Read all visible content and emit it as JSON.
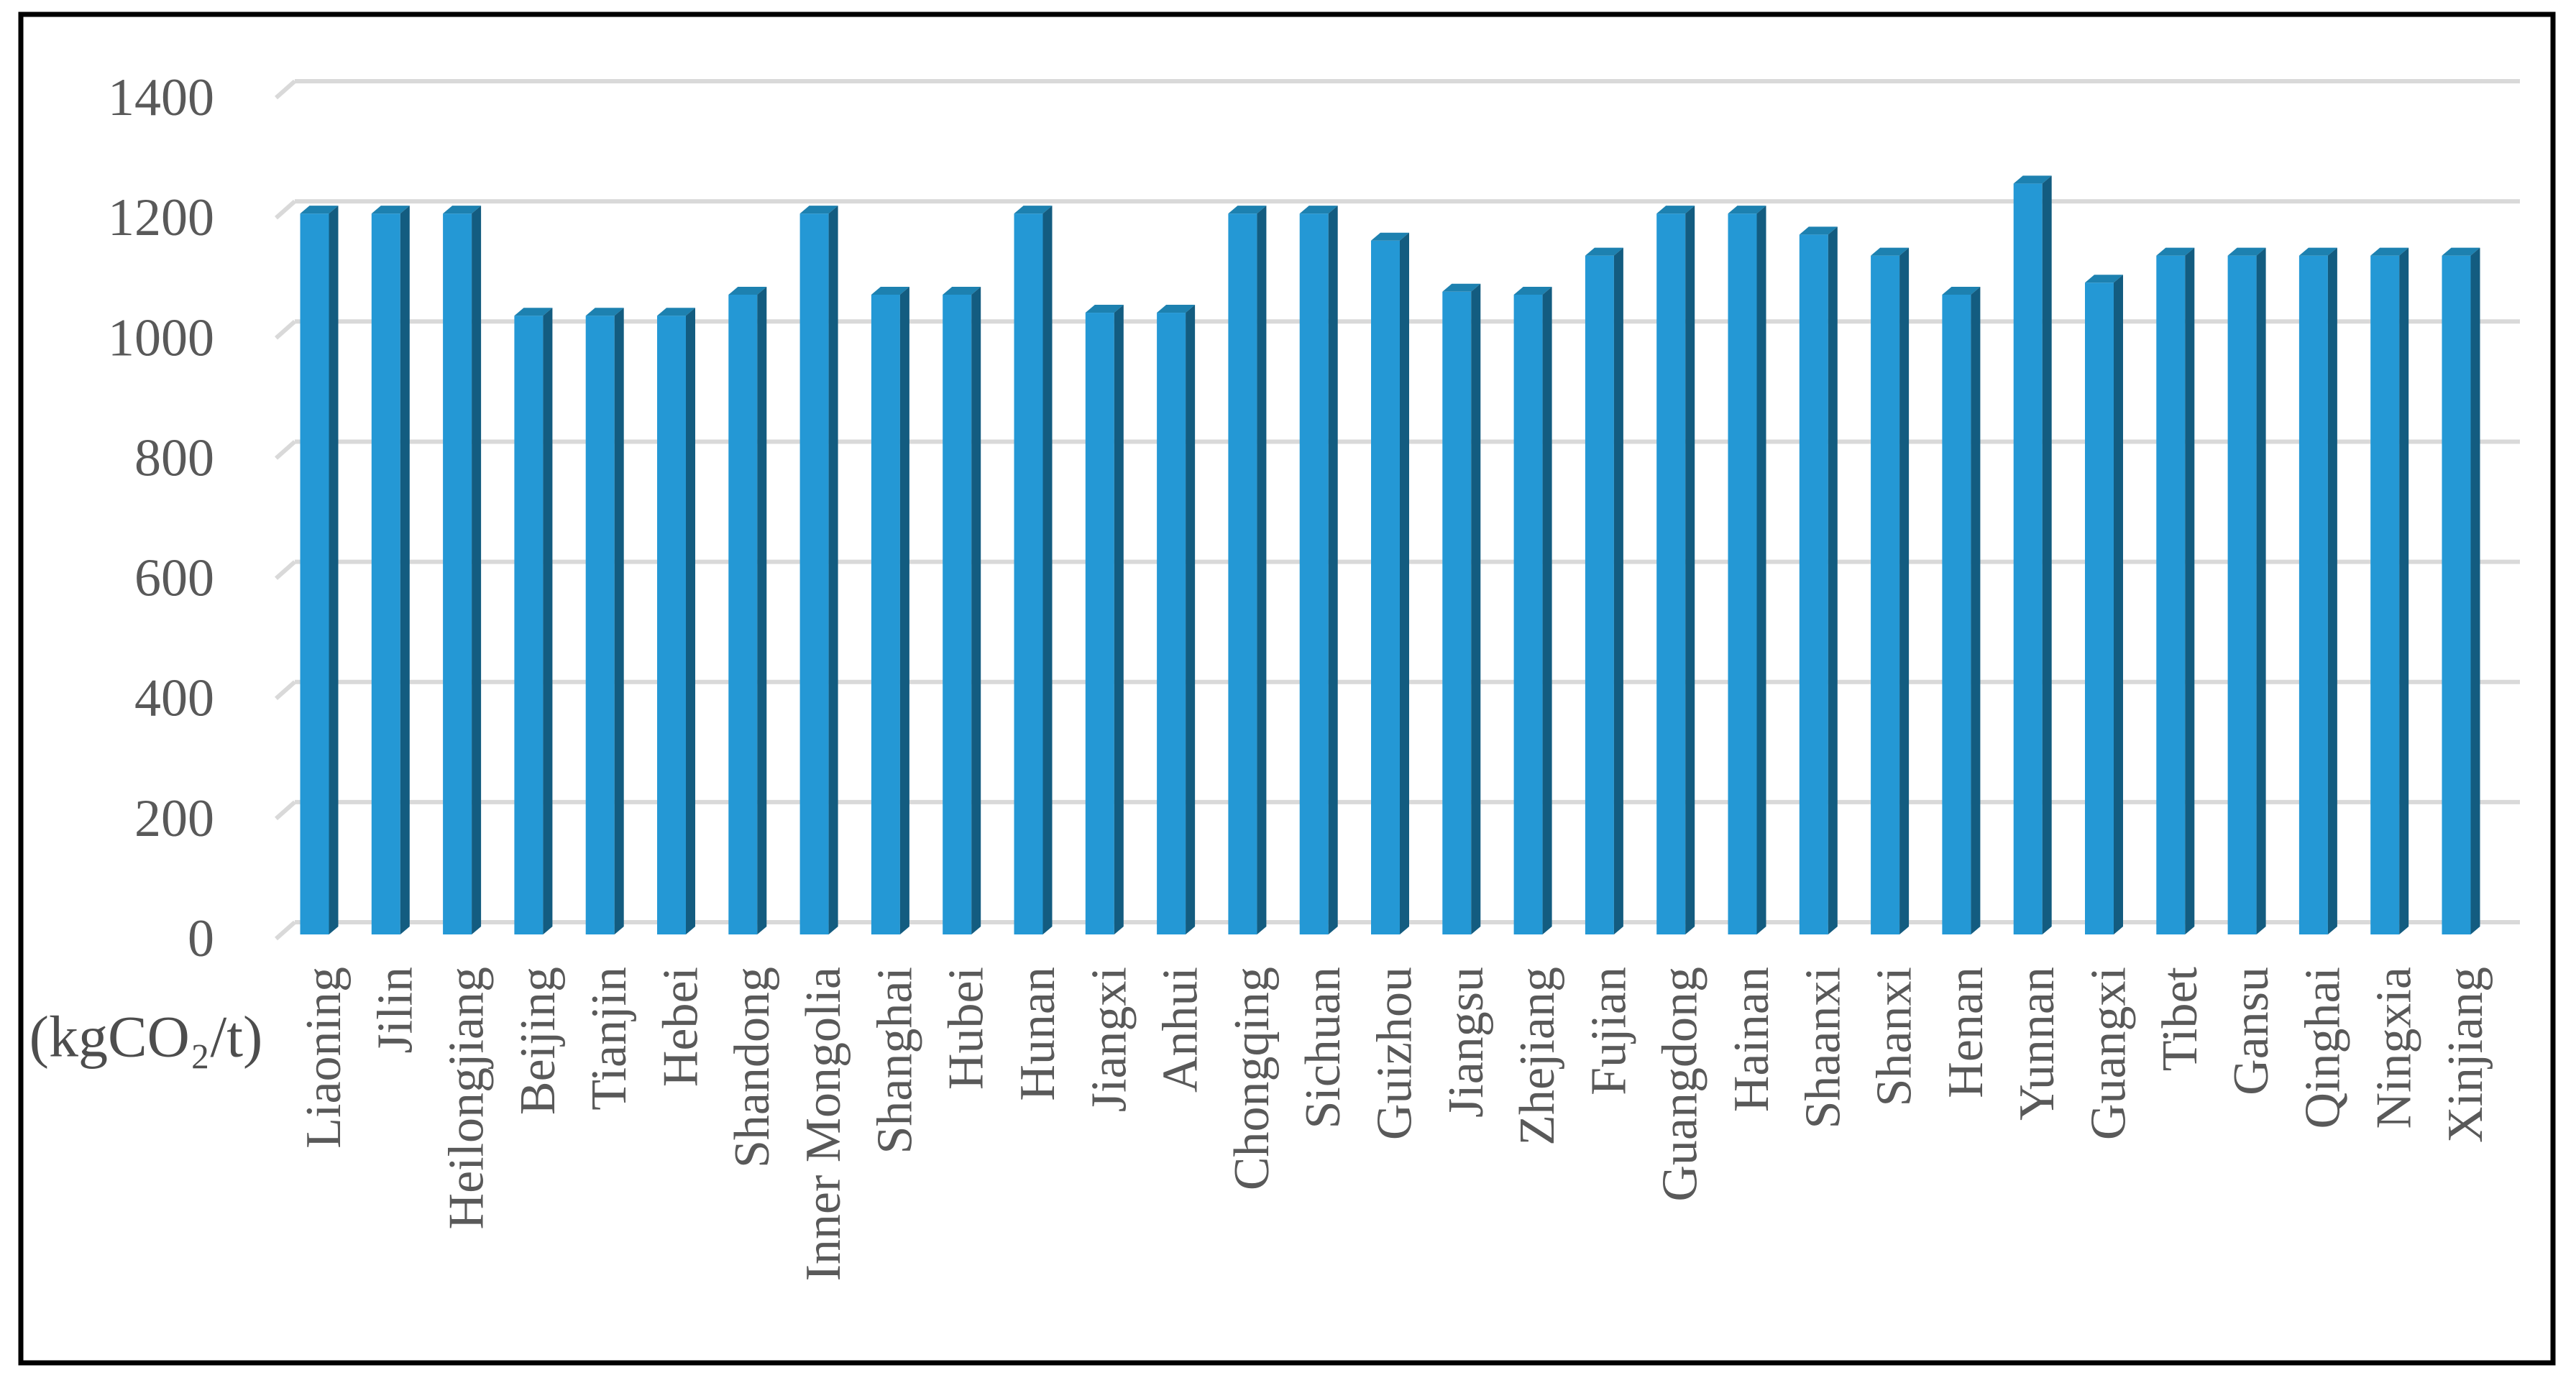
{
  "figure": {
    "background": "#ffffff",
    "border_color": "#000000"
  },
  "chart_data": {
    "type": "bar",
    "style": "3d-column",
    "title": "",
    "xlabel": "",
    "ylabel": "",
    "y_axis_unit": "(kgCO₂/t)",
    "ylim": [
      0,
      1400
    ],
    "y_ticks": [
      0,
      200,
      400,
      600,
      800,
      1000,
      1200,
      1400
    ],
    "grid": true,
    "legend": "none",
    "categories": [
      "Liaoning",
      "Jilin",
      "Heilongjiang",
      "Beijing",
      "Tianjin",
      "Hebei",
      "Shandong",
      "Inner Mongolia",
      "Shanghai",
      "Hubei",
      "Hunan",
      "Jiangxi",
      "Anhui",
      "Chongqing",
      "Sichuan",
      "Guizhou",
      "Jiangsu",
      "Zhejiang",
      "Fujian",
      "Guangdong",
      "Hainan",
      "Shaanxi",
      "Shanxi",
      "Henan",
      "Yunnan",
      "Guangxi",
      "Tibet",
      "Gansu",
      "Qinghai",
      "Ningxia",
      "Xinjiang"
    ],
    "values": [
      1200,
      1200,
      1200,
      1030,
      1030,
      1030,
      1065,
      1200,
      1065,
      1065,
      1200,
      1035,
      1035,
      1200,
      1200,
      1155,
      1070,
      1065,
      1130,
      1200,
      1200,
      1165,
      1130,
      1065,
      1250,
      1085,
      1130,
      1130,
      1130,
      1130,
      1130
    ],
    "colors": {
      "bar_front": "#2498d5",
      "bar_top": "#1d81b0",
      "bar_side": "#135c80",
      "gridline": "#d9d9d9",
      "axis_text": "#595959"
    }
  }
}
